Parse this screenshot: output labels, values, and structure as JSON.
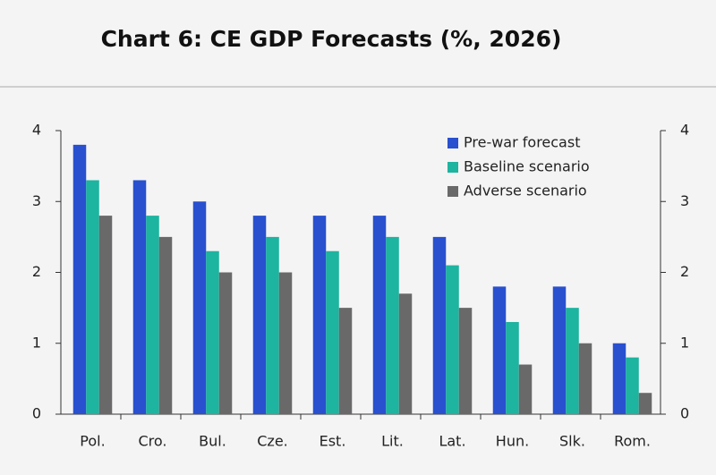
{
  "chart_data": {
    "type": "bar",
    "title": "Chart 6: CE GDP Forecasts (%, 2026)",
    "categories": [
      "Pol.",
      "Cro.",
      "Bul.",
      "Cze.",
      "Est.",
      "Lit.",
      "Lat.",
      "Hun.",
      "Slk.",
      "Rom."
    ],
    "series": [
      {
        "name": "Pre-war forecast",
        "color": "#2850cf",
        "values": [
          3.8,
          3.3,
          3.0,
          2.8,
          2.8,
          2.8,
          2.5,
          1.8,
          1.8,
          1.0
        ]
      },
      {
        "name": "Baseline scenario",
        "color": "#1db4a0",
        "values": [
          3.3,
          2.8,
          2.3,
          2.5,
          2.3,
          2.5,
          2.1,
          1.3,
          1.5,
          0.8
        ]
      },
      {
        "name": "Adverse scenario",
        "color": "#696969",
        "values": [
          2.8,
          2.5,
          2.0,
          2.0,
          1.5,
          1.7,
          1.5,
          0.7,
          1.0,
          0.3
        ]
      }
    ],
    "ylim": [
      0,
      4
    ],
    "yticks": [
      0,
      1,
      2,
      3,
      4
    ],
    "y2lim": [
      0,
      4
    ],
    "y2ticks": [
      0,
      1,
      2,
      3,
      4
    ],
    "legend": "upper right",
    "grid": false
  }
}
